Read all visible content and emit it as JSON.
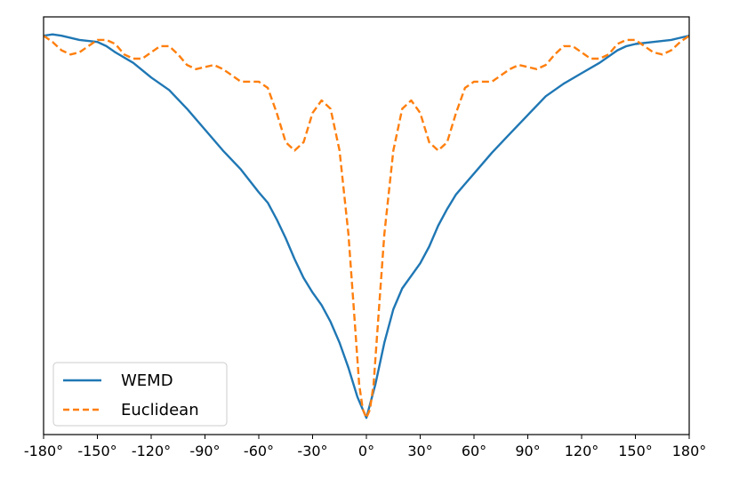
{
  "chart_data": {
    "type": "line",
    "title": "",
    "xlabel": "",
    "ylabel": "",
    "xlim": [
      -180,
      180
    ],
    "ylim": [
      0,
      1
    ],
    "xticks": [
      -180,
      -150,
      -120,
      -90,
      -60,
      -30,
      0,
      30,
      60,
      90,
      120,
      150,
      180
    ],
    "xtick_labels": [
      "-180°",
      "-150°",
      "-120°",
      "-90°",
      "-60°",
      "-30°",
      "0°",
      "30°",
      "60°",
      "90°",
      "120°",
      "150°",
      "180°"
    ],
    "yticks_shown": false,
    "grid": false,
    "legend": {
      "placement": "lower-left"
    },
    "series": [
      {
        "name": "WEMD",
        "color": "#1f77b4",
        "linestyle": "solid",
        "x": [
          -180,
          -175,
          -170,
          -160,
          -150,
          -145,
          -140,
          -130,
          -120,
          -110,
          -100,
          -90,
          -80,
          -70,
          -60,
          -55,
          -50,
          -45,
          -40,
          -35,
          -30,
          -25,
          -20,
          -15,
          -10,
          -5,
          0,
          5,
          10,
          15,
          20,
          25,
          30,
          35,
          40,
          45,
          50,
          55,
          60,
          70,
          80,
          90,
          100,
          110,
          120,
          130,
          140,
          145,
          150,
          160,
          170,
          175,
          180
        ],
        "y": [
          0.955,
          0.958,
          0.955,
          0.945,
          0.94,
          0.93,
          0.915,
          0.89,
          0.855,
          0.825,
          0.78,
          0.73,
          0.68,
          0.635,
          0.58,
          0.555,
          0.515,
          0.47,
          0.42,
          0.375,
          0.34,
          0.31,
          0.27,
          0.22,
          0.16,
          0.09,
          0.04,
          0.12,
          0.22,
          0.3,
          0.35,
          0.38,
          0.41,
          0.45,
          0.5,
          0.54,
          0.575,
          0.6,
          0.625,
          0.675,
          0.72,
          0.765,
          0.81,
          0.84,
          0.865,
          0.89,
          0.92,
          0.93,
          0.935,
          0.94,
          0.945,
          0.95,
          0.955
        ]
      },
      {
        "name": "Euclidean",
        "color": "#ff7f0e",
        "linestyle": "dashed",
        "x": [
          -180,
          -175,
          -170,
          -165,
          -160,
          -155,
          -150,
          -145,
          -140,
          -135,
          -130,
          -125,
          -120,
          -115,
          -110,
          -105,
          -100,
          -95,
          -90,
          -85,
          -80,
          -75,
          -70,
          -65,
          -60,
          -55,
          -50,
          -45,
          -40,
          -35,
          -30,
          -25,
          -20,
          -15,
          -10,
          -7,
          -4,
          -2,
          0,
          2,
          4,
          7,
          10,
          15,
          20,
          25,
          30,
          35,
          40,
          45,
          50,
          55,
          60,
          65,
          70,
          75,
          80,
          85,
          90,
          95,
          100,
          105,
          110,
          115,
          120,
          125,
          130,
          135,
          140,
          145,
          150,
          155,
          160,
          165,
          170,
          175,
          180
        ],
        "y": [
          0.955,
          0.94,
          0.92,
          0.91,
          0.915,
          0.93,
          0.945,
          0.945,
          0.935,
          0.91,
          0.9,
          0.9,
          0.915,
          0.93,
          0.93,
          0.91,
          0.885,
          0.875,
          0.88,
          0.885,
          0.875,
          0.86,
          0.845,
          0.845,
          0.845,
          0.83,
          0.77,
          0.7,
          0.68,
          0.7,
          0.77,
          0.8,
          0.78,
          0.68,
          0.48,
          0.3,
          0.12,
          0.06,
          0.04,
          0.06,
          0.12,
          0.3,
          0.48,
          0.68,
          0.78,
          0.8,
          0.77,
          0.7,
          0.68,
          0.7,
          0.77,
          0.83,
          0.845,
          0.845,
          0.845,
          0.86,
          0.875,
          0.885,
          0.88,
          0.875,
          0.885,
          0.91,
          0.93,
          0.93,
          0.915,
          0.9,
          0.9,
          0.91,
          0.935,
          0.945,
          0.945,
          0.93,
          0.915,
          0.91,
          0.92,
          0.94,
          0.955
        ]
      }
    ]
  }
}
